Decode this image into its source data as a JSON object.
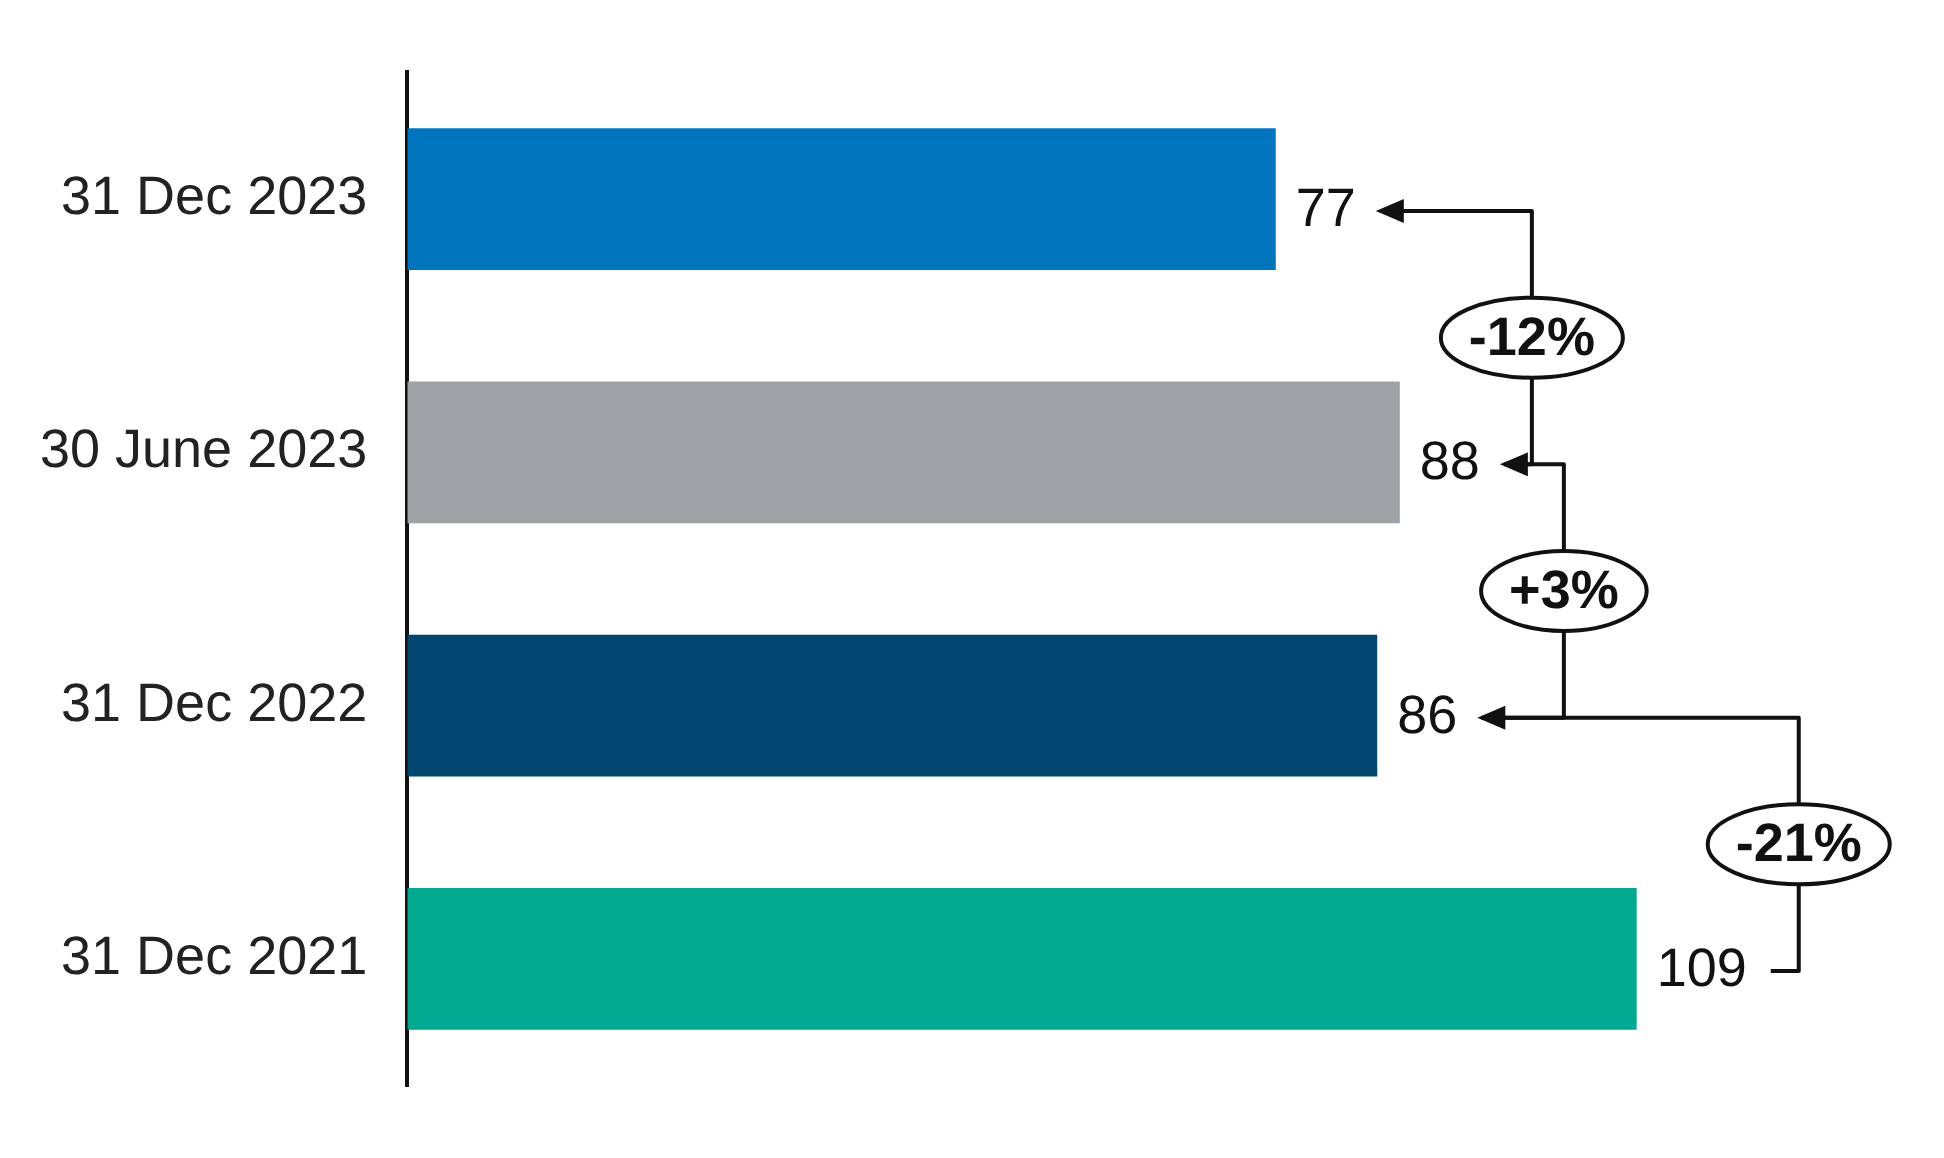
{
  "chart_data": {
    "type": "bar",
    "orientation": "horizontal",
    "categories": [
      "31 Dec 2023",
      "30 June 2023",
      "31 Dec 2022",
      "31 Dec 2021"
    ],
    "values": [
      77,
      88,
      86,
      109
    ],
    "colors": [
      "#0075be",
      "#9ea2a4",
      "#00466f",
      "#00a88f"
    ],
    "tick_labels": "y",
    "grid": false,
    "legend": false,
    "data_labels": true,
    "annotations": [
      "-12%",
      "+3%",
      "-21%"
    ]
  }
}
